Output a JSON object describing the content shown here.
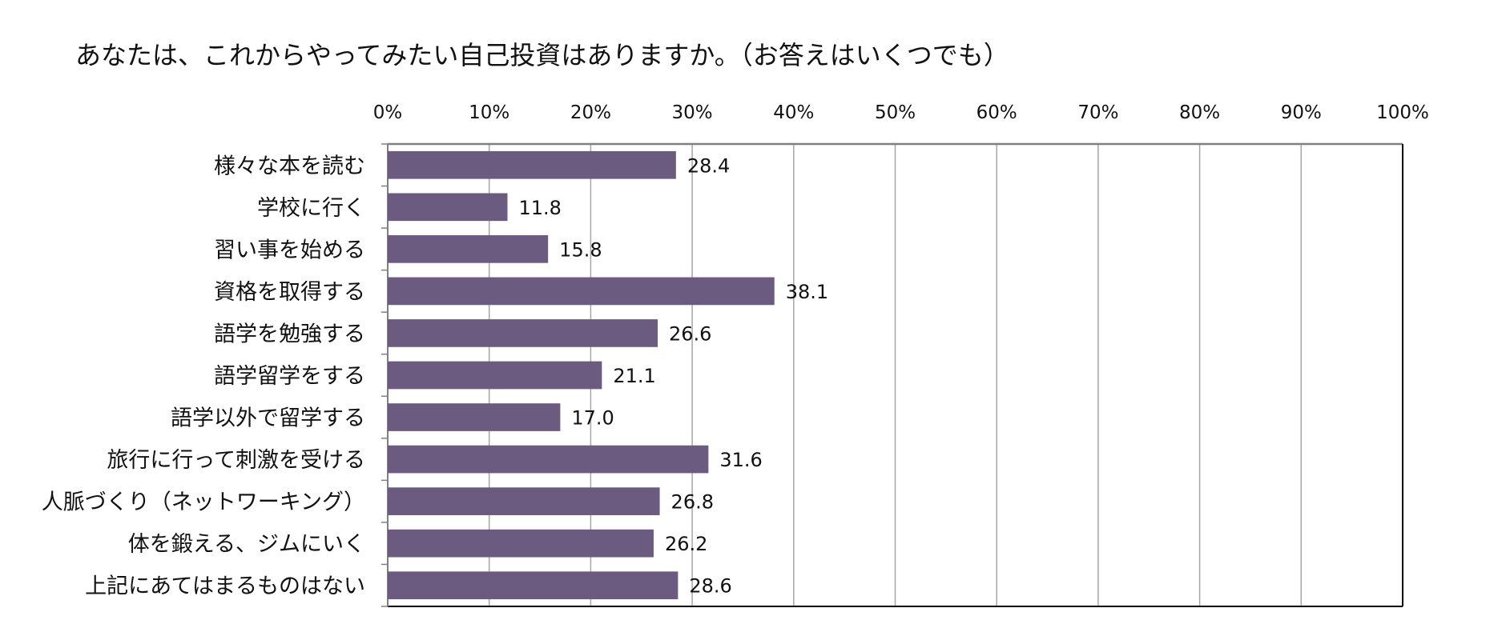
{
  "chart_data": {
    "type": "bar",
    "orientation": "horizontal",
    "title": "あなたは、これからやってみたい自己投資はありますか。（お答えはいくつでも）",
    "xlabel": "",
    "ylabel": "",
    "xlim": [
      0,
      100
    ],
    "x_ticks": [
      "0%",
      "10%",
      "20%",
      "30%",
      "40%",
      "50%",
      "60%",
      "70%",
      "80%",
      "90%",
      "100%"
    ],
    "categories": [
      "様々な本を読む",
      "学校に行く",
      "習い事を始める",
      "資格を取得する",
      "語学を勉強する",
      "語学留学をする",
      "語学以外で留学する",
      "旅行に行って刺激を受ける",
      "人脈づくり（ネットワーキング）",
      "体を鍛える、ジムにいく",
      "上記にあてはまるものはない"
    ],
    "values": [
      28.4,
      11.8,
      15.8,
      38.1,
      26.6,
      21.1,
      17.0,
      31.6,
      26.8,
      26.2,
      28.6
    ],
    "value_labels": [
      "28.4",
      "11.8",
      "15.8",
      "38.1",
      "26.6",
      "21.1",
      "17.0",
      "31.6",
      "26.8",
      "26.2",
      "28.6"
    ],
    "grid": true,
    "axis_position": "top",
    "bar_color": "#6b5b80"
  }
}
